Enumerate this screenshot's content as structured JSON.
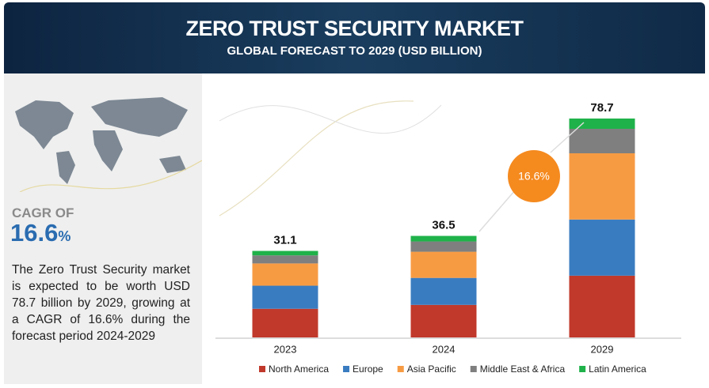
{
  "header": {
    "title": "ZERO TRUST SECURITY MARKET",
    "subtitle": "GLOBAL FORECAST TO 2029 (USD BILLION)"
  },
  "sidebar": {
    "cagr_label": "CAGR OF",
    "cagr_value": "16.6",
    "cagr_unit": "%",
    "description": "The Zero Trust Security market is expected to be worth USD 78.7 billion by 2029, growing at a CAGR of 16.6% during the forecast period 2024-2029"
  },
  "chart_data": {
    "type": "bar",
    "stacked": true,
    "categories": [
      "2023",
      "2024",
      "2029"
    ],
    "series": [
      {
        "name": "North America",
        "color": "#c0392b",
        "values": [
          10.3,
          11.7,
          22.2
        ]
      },
      {
        "name": "Europe",
        "color": "#3a7cc0",
        "values": [
          8.3,
          9.7,
          20.2
        ]
      },
      {
        "name": "Asia Pacific",
        "color": "#f79b43",
        "values": [
          8.0,
          9.4,
          23.8
        ]
      },
      {
        "name": "Middle East & Africa",
        "color": "#7f7f7f",
        "values": [
          2.9,
          3.7,
          8.8
        ]
      },
      {
        "name": "Latin America",
        "color": "#1fb24a",
        "values": [
          1.6,
          2.0,
          3.7
        ]
      }
    ],
    "totals": [
      31.1,
      36.5,
      78.7
    ],
    "annotation": "16.6%"
  }
}
